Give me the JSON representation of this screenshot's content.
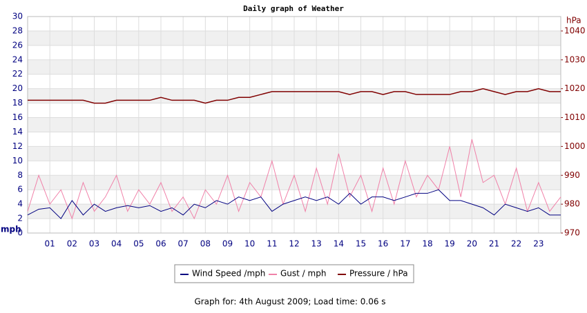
{
  "chart_data": {
    "type": "line",
    "title": "Daily graph of Weather",
    "y_label": "mph",
    "y2_label": "hPa",
    "footer": "Graph for: 4th August 2009; Load time: 0.06 s",
    "xlim": [
      0,
      24
    ],
    "xticks": [
      {
        "value": 1,
        "label": "01"
      },
      {
        "value": 2,
        "label": "02"
      },
      {
        "value": 3,
        "label": "03"
      },
      {
        "value": 4,
        "label": "04"
      },
      {
        "value": 5,
        "label": "05"
      },
      {
        "value": 6,
        "label": "06"
      },
      {
        "value": 7,
        "label": "07"
      },
      {
        "value": 8,
        "label": "08"
      },
      {
        "value": 9,
        "label": "09"
      },
      {
        "value": 10,
        "label": "10"
      },
      {
        "value": 11,
        "label": "11"
      },
      {
        "value": 12,
        "label": "12"
      },
      {
        "value": 13,
        "label": "13"
      },
      {
        "value": 14,
        "label": "14"
      },
      {
        "value": 15,
        "label": "15"
      },
      {
        "value": 16,
        "label": "16"
      },
      {
        "value": 17,
        "label": "17"
      },
      {
        "value": 18,
        "label": "18"
      },
      {
        "value": 19,
        "label": "19"
      },
      {
        "value": 20,
        "label": "20"
      },
      {
        "value": 21,
        "label": "21"
      },
      {
        "value": 22,
        "label": "22"
      },
      {
        "value": 23,
        "label": "23"
      }
    ],
    "ylim": [
      0,
      30
    ],
    "yticks": [
      0,
      2,
      4,
      6,
      8,
      10,
      12,
      14,
      16,
      18,
      20,
      22,
      24,
      26,
      28,
      30
    ],
    "y2lim": [
      970,
      1045
    ],
    "y2ticks": [
      970,
      980,
      990,
      1000,
      1010,
      1020,
      1030,
      1040
    ],
    "grid": true,
    "x": [
      0,
      0.5,
      1,
      1.5,
      2,
      2.5,
      3,
      3.5,
      4,
      4.5,
      5,
      5.5,
      6,
      6.5,
      7,
      7.5,
      8,
      8.5,
      9,
      9.5,
      10,
      10.5,
      11,
      11.5,
      12,
      12.5,
      13,
      13.5,
      14,
      14.5,
      15,
      15.5,
      16,
      16.5,
      17,
      17.5,
      18,
      18.5,
      19,
      19.5,
      20,
      20.5,
      21,
      21.5,
      22,
      22.5,
      23,
      23.5,
      24
    ],
    "series": [
      {
        "name": "Wind Speed /mph",
        "color": "#000080",
        "values": [
          2.5,
          3.3,
          3.5,
          2,
          4.5,
          2.5,
          4,
          3,
          3.5,
          3.8,
          3.5,
          3.8,
          3,
          3.5,
          2.5,
          4,
          3.5,
          4.5,
          4,
          5,
          4.5,
          5,
          3,
          4,
          4.5,
          5,
          4.5,
          5,
          4,
          5.5,
          4,
          5,
          5,
          4.5,
          5,
          5.5,
          5.5,
          6,
          4.5,
          4.5,
          4,
          3.5,
          2.5,
          4,
          3.5,
          3,
          3.5,
          2.5,
          2.5
        ]
      },
      {
        "name": "Gust / mph",
        "color": "#f080a8",
        "values": [
          3,
          8,
          4,
          6,
          2,
          7,
          3,
          5,
          8,
          3,
          6,
          4,
          7,
          3,
          5,
          2,
          6,
          4,
          8,
          3,
          7,
          5,
          10,
          4,
          8,
          3,
          9,
          4,
          11,
          5,
          8,
          3,
          9,
          4,
          10,
          5,
          8,
          6,
          12,
          5,
          13,
          7,
          8,
          4,
          9,
          3,
          7,
          3,
          5
        ]
      },
      {
        "name": "Pressure / hPa",
        "color": "#800000",
        "axis": "y2",
        "values": [
          1016,
          1016,
          1016,
          1016,
          1016,
          1016,
          1015,
          1015,
          1016,
          1016,
          1016,
          1016,
          1017,
          1016,
          1016,
          1016,
          1015,
          1016,
          1016,
          1017,
          1017,
          1018,
          1019,
          1019,
          1019,
          1019,
          1019,
          1019,
          1019,
          1018,
          1019,
          1019,
          1018,
          1019,
          1019,
          1018,
          1018,
          1018,
          1018,
          1019,
          1019,
          1020,
          1019,
          1018,
          1019,
          1019,
          1020,
          1019,
          1019
        ]
      }
    ]
  }
}
